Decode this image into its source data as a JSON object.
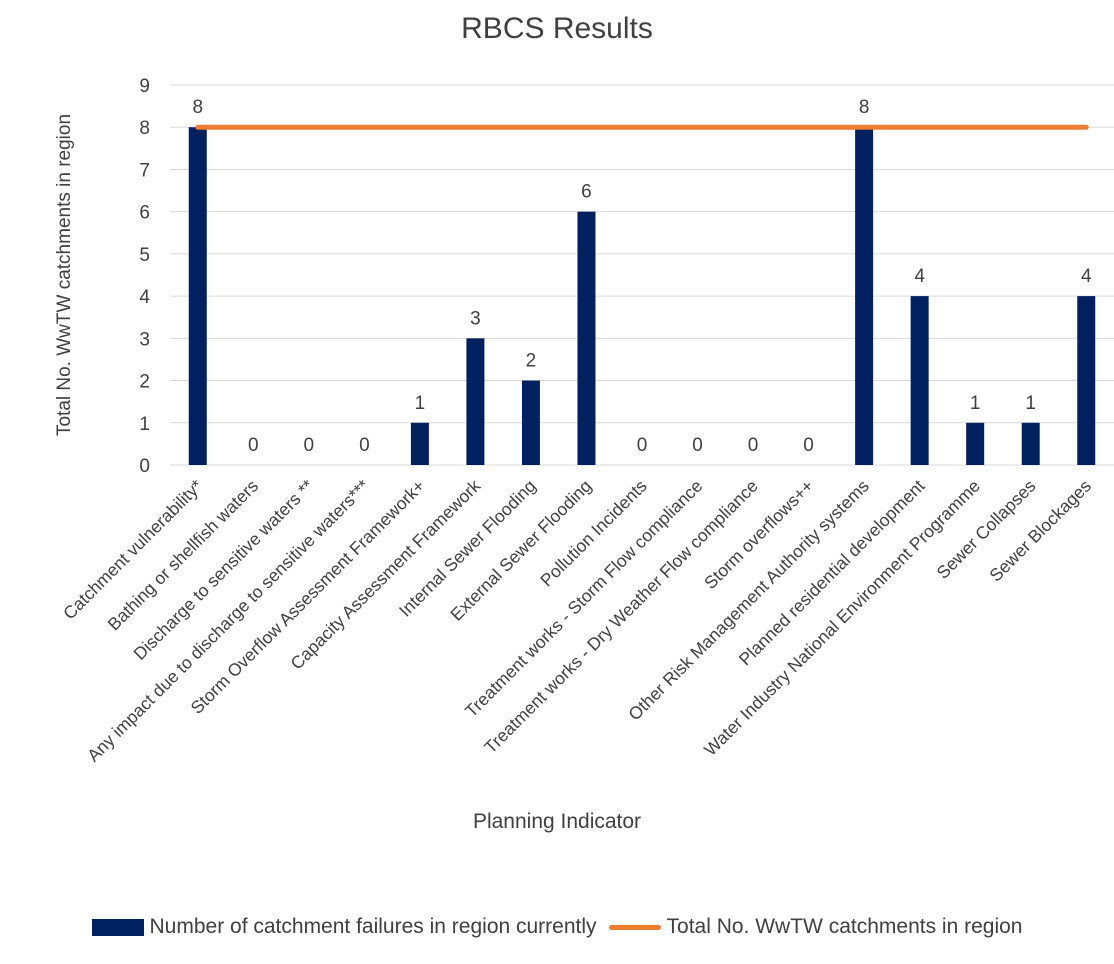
{
  "chart_data": {
    "type": "bar",
    "title": "RBCS Results",
    "xlabel": "Planning Indicator",
    "ylabel": "Total No. WwTW catchments in region",
    "ylim": [
      0,
      9
    ],
    "yticks": [
      0,
      1,
      2,
      3,
      4,
      5,
      6,
      7,
      8,
      9
    ],
    "grid": true,
    "legend_position": "bottom",
    "categories": [
      "Catchment vulnerability*",
      "Bathing or shellfish waters",
      "Discharge to sensitive waters **",
      "Any impact due to discharge to sensitive waters***",
      "Storm Overflow Assessment Framework+",
      "Capacity Assessment Framework",
      "Internal Sewer Flooding",
      "External Sewer Flooding",
      "Pollution Incidents",
      "Treatment works - Storm Flow compliance",
      "Treatment works - Dry Weather Flow compliance",
      "Storm overflows++",
      "Other Risk Management Authority systems",
      "Planned residential development",
      "Water Industry National Environment Programme",
      "Sewer Collapses",
      "Sewer Blockages"
    ],
    "series": [
      {
        "name": "Number of catchment failures in region currently",
        "type": "bar",
        "color": "#002060",
        "values": [
          8,
          0,
          0,
          0,
          1,
          3,
          2,
          6,
          0,
          0,
          0,
          0,
          8,
          4,
          1,
          1,
          4
        ]
      },
      {
        "name": "Total No. WwTW catchments in region",
        "type": "line",
        "color": "#ED7D31",
        "values": [
          8,
          8,
          8,
          8,
          8,
          8,
          8,
          8,
          8,
          8,
          8,
          8,
          8,
          8,
          8,
          8,
          8
        ]
      }
    ]
  }
}
